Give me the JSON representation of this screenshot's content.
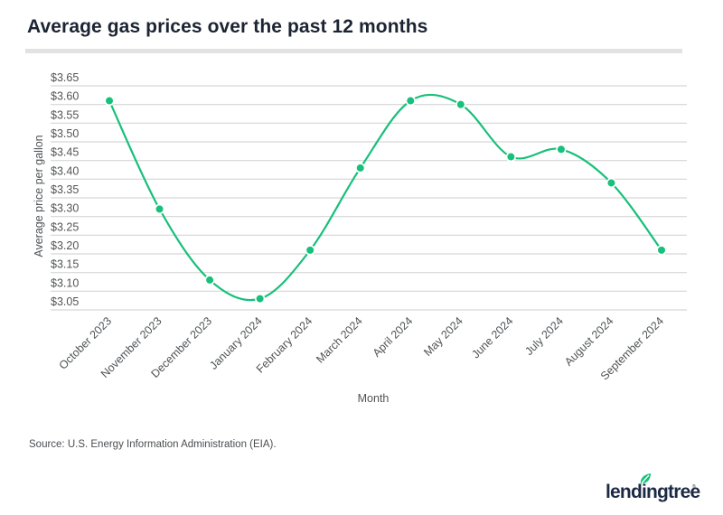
{
  "header": {
    "title": "Average gas prices over the past 12 months"
  },
  "footer": {
    "source": "Source: U.S. Energy Information Administration (EIA).",
    "logo_text": "lendingtree",
    "logo_mark": "®",
    "logo_icon": "leaf-icon"
  },
  "colors": {
    "series": "#17c07b",
    "title": "#1c2433",
    "grid": "#d6d6d6",
    "logo": "#1c2a44"
  },
  "chart_data": {
    "type": "line",
    "title": "Average gas prices over the past 12 months",
    "xlabel": "Month",
    "ylabel": "Average price per gallon",
    "categories": [
      "October 2023",
      "November 2023",
      "December 2023",
      "January 2024",
      "February 2024",
      "March 2024",
      "April 2024",
      "May 2024",
      "June 2024",
      "July 2024",
      "August 2024",
      "September 2024"
    ],
    "series": [
      {
        "name": "Average price per gallon",
        "values": [
          3.61,
          3.32,
          3.13,
          3.08,
          3.21,
          3.43,
          3.61,
          3.6,
          3.46,
          3.48,
          3.39,
          3.21
        ]
      }
    ],
    "ylim": [
      3.05,
      3.65
    ],
    "yticks": [
      3.05,
      3.1,
      3.15,
      3.2,
      3.25,
      3.3,
      3.35,
      3.4,
      3.45,
      3.5,
      3.55,
      3.6,
      3.65
    ],
    "ytick_labels": [
      "$3.05",
      "$3.10",
      "$3.15",
      "$3.20",
      "$3.25",
      "$3.30",
      "$3.35",
      "$3.40",
      "$3.45",
      "$3.50",
      "$3.55",
      "$3.60",
      "$3.65"
    ],
    "grid": true,
    "smooth": true,
    "markers": true,
    "legend": "none"
  }
}
